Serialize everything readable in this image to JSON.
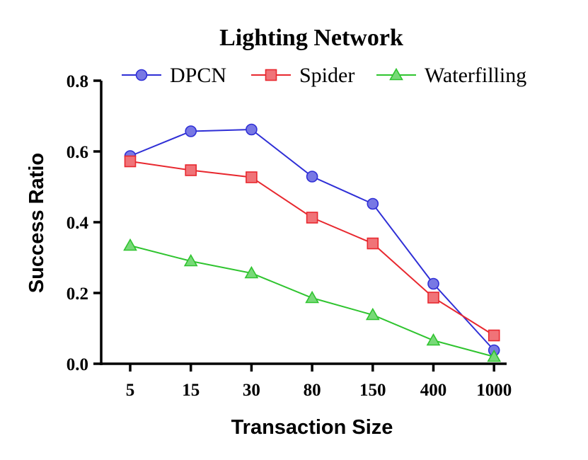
{
  "chart_data": {
    "type": "line",
    "title": "Lighting Network",
    "xlabel": "Transaction Size",
    "ylabel": "Success Ratio",
    "categories": [
      "5",
      "15",
      "30",
      "80",
      "150",
      "400",
      "1000"
    ],
    "ylim": [
      0,
      0.8
    ],
    "yticks": [
      "0.0",
      "0.2",
      "0.4",
      "0.6",
      "0.8"
    ],
    "grid": false,
    "legend_position": "top",
    "series": [
      {
        "name": "DPCN",
        "color": "#2f2fd6",
        "marker": "circle",
        "values": [
          0.587,
          0.657,
          0.662,
          0.529,
          0.452,
          0.226,
          0.038
        ]
      },
      {
        "name": "Spider",
        "color": "#e8282f",
        "marker": "square",
        "values": [
          0.572,
          0.547,
          0.527,
          0.413,
          0.34,
          0.187,
          0.08
        ]
      },
      {
        "name": "Waterfilling",
        "color": "#2fc42f",
        "marker": "triangle",
        "values": [
          0.334,
          0.29,
          0.256,
          0.186,
          0.138,
          0.066,
          0.02
        ]
      }
    ]
  }
}
